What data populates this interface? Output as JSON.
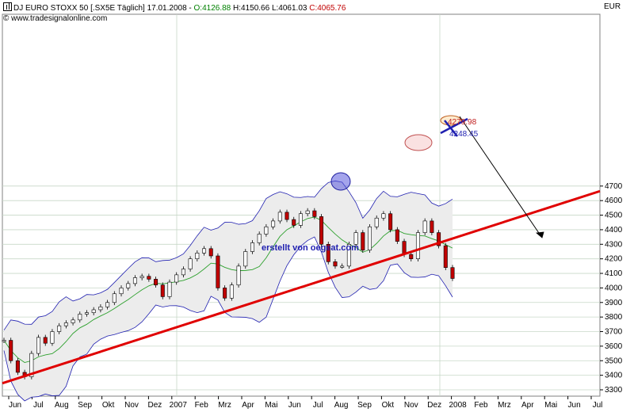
{
  "header": {
    "icon_name": "chart-icon",
    "instrument": "DJ EURO STOXX 50 [.SX5E  Täglich] 17.01.2008 -",
    "open": "O:4126.88",
    "high_low": "H:4150.66 L:4061.03",
    "close": "C:4065.76",
    "source": "© www.tradesignalonline.com",
    "currency": "EUR"
  },
  "credit": "erstellt von oegeat.com",
  "colors": {
    "price_up": "#ffffff",
    "price_down": "#c00000",
    "bollinger": "#1f1fb0",
    "moving_average": "#2ca02c",
    "trendline": "#e00000",
    "grid": "#c8d8c8",
    "band_fill": "#ececec"
  },
  "chart_data": {
    "type": "line",
    "title": "DJ EURO STOXX 50",
    "xlabel": "",
    "ylabel": "EUR",
    "ylim": [
      3300,
      4700
    ],
    "yticks": [
      3300,
      3400,
      3500,
      3600,
      3700,
      3800,
      3900,
      4000,
      4100,
      4200,
      4300,
      4400,
      4500,
      4600,
      4700
    ],
    "x_tick_labels": [
      "Jun",
      "Jul",
      "Aug",
      "Sep",
      "Okt",
      "Nov",
      "Dez",
      "2007",
      "Feb",
      "Mrz",
      "Apr",
      "Mai",
      "Jun",
      "Jul",
      "Aug",
      "Sep",
      "Okt",
      "Nov",
      "Dez",
      "2008",
      "Feb",
      "Mrz",
      "Apr",
      "Mai",
      "Jun",
      "Jul"
    ],
    "grid": true,
    "series": [
      {
        "name": "Close",
        "values": [
          3640,
          3500,
          3420,
          3390,
          3550,
          3660,
          3620,
          3700,
          3740,
          3760,
          3780,
          3820,
          3830,
          3850,
          3870,
          3900,
          3960,
          4000,
          4030,
          4070,
          4080,
          4060,
          4020,
          3940,
          4040,
          4090,
          4130,
          4200,
          4240,
          4270,
          4220,
          4000,
          3930,
          4020,
          4150,
          4250,
          4310,
          4370,
          4420,
          4460,
          4520,
          4470,
          4430,
          4510,
          4530,
          4490,
          4300,
          4180,
          4150,
          4150,
          4300,
          4380,
          4260,
          4420,
          4480,
          4510,
          4400,
          4320,
          4230,
          4200,
          4380,
          4460,
          4380,
          4290,
          4140,
          4065
        ]
      },
      {
        "name": "Trendline",
        "values": [
          3345,
          4665
        ]
      }
    ],
    "annotations": [
      {
        "text": "4279.98",
        "value": 4279.98
      },
      {
        "text": "4248.45",
        "value": 4248.45
      }
    ]
  }
}
